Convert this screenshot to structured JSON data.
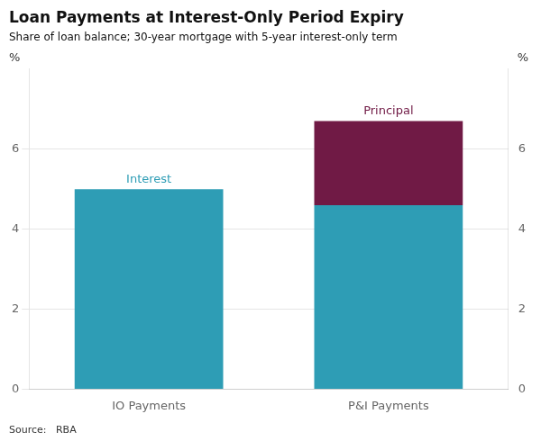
{
  "chart_data": {
    "type": "bar",
    "title": "Loan Payments at Interest-Only Period Expiry",
    "subtitle": "Share of loan balance; 30-year mortgage with 5-year interest-only term",
    "source": "Source:   RBA",
    "categories": [
      "IO Payments",
      "P&I Payments"
    ],
    "series": [
      {
        "name": "Interest",
        "color": "#2E9DB5",
        "values": [
          5.0,
          4.6
        ]
      },
      {
        "name": "Principal",
        "color": "#701A45",
        "values": [
          0.0,
          2.1
        ]
      }
    ],
    "stacked": true,
    "ylabel": "%",
    "y2label": "%",
    "ylim": [
      0,
      8
    ],
    "yticks": [
      0,
      2,
      4,
      6
    ],
    "y2lim": [
      0,
      8
    ],
    "y2ticks": [
      0,
      2,
      4,
      6
    ],
    "grid": true
  }
}
